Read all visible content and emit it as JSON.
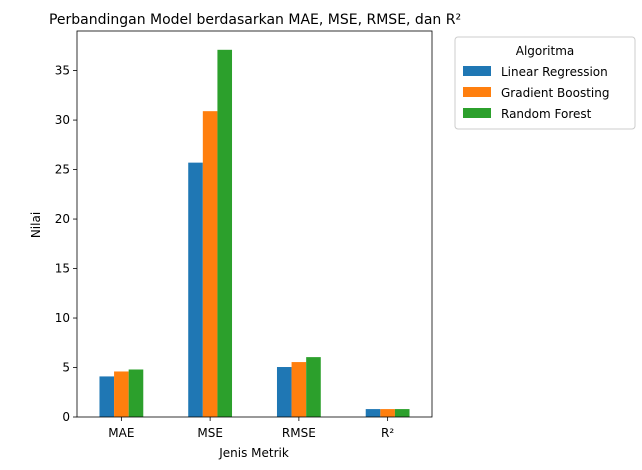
{
  "chart_data": {
    "type": "bar",
    "title": "Perbandingan Model berdasarkan MAE, MSE, RMSE, dan R²",
    "xlabel": "Jenis Metrik",
    "ylabel": "Nilai",
    "categories": [
      "MAE",
      "MSE",
      "RMSE",
      "R²"
    ],
    "series": [
      {
        "name": "Linear Regression",
        "color": "#1f77b4",
        "values": [
          4.1,
          25.7,
          5.05,
          0.8
        ]
      },
      {
        "name": "Gradient Boosting",
        "color": "#ff7f0e",
        "values": [
          4.6,
          30.9,
          5.55,
          0.8
        ]
      },
      {
        "name": "Random Forest",
        "color": "#2ca02c",
        "values": [
          4.8,
          37.1,
          6.05,
          0.8
        ]
      }
    ],
    "ylim": [
      0,
      39
    ],
    "yticks": [
      0,
      5,
      10,
      15,
      20,
      25,
      30,
      35
    ],
    "grid": false,
    "legend": {
      "title": "Algoritma",
      "placement": "outside-top-right"
    }
  }
}
